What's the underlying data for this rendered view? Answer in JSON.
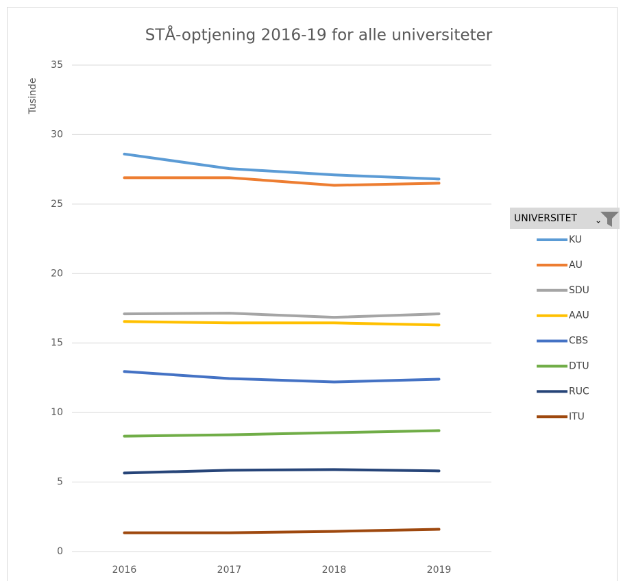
{
  "chart_data": {
    "type": "line",
    "title": "STÅ-optjening 2016-19 for alle universiteter",
    "y_label": "Tusinde",
    "legend_title": "UNIVERSITET",
    "categories": [
      "2016",
      "2017",
      "2018",
      "2019"
    ],
    "ylim": [
      0,
      35
    ],
    "yticks": [
      0,
      5,
      10,
      15,
      20,
      25,
      30,
      35
    ],
    "grid": true,
    "legend": "right",
    "series": [
      {
        "name": "KU",
        "color": "#5b9bd5",
        "values": [
          28.6,
          27.55,
          27.1,
          26.8
        ]
      },
      {
        "name": "AU",
        "color": "#ed7d31",
        "values": [
          26.9,
          26.9,
          26.35,
          26.5
        ]
      },
      {
        "name": "SDU",
        "color": "#a5a5a5",
        "values": [
          17.1,
          17.15,
          16.85,
          17.1
        ]
      },
      {
        "name": "AAU",
        "color": "#ffc000",
        "values": [
          16.55,
          16.45,
          16.45,
          16.3
        ]
      },
      {
        "name": "CBS",
        "color": "#4472c4",
        "values": [
          12.95,
          12.45,
          12.2,
          12.4
        ]
      },
      {
        "name": "DTU",
        "color": "#70ad47",
        "values": [
          8.3,
          8.4,
          8.55,
          8.7
        ]
      },
      {
        "name": "RUC",
        "color": "#264478",
        "values": [
          5.65,
          5.85,
          5.9,
          5.8
        ]
      },
      {
        "name": "ITU",
        "color": "#9e480e",
        "values": [
          1.35,
          1.35,
          1.45,
          1.6
        ]
      }
    ]
  }
}
